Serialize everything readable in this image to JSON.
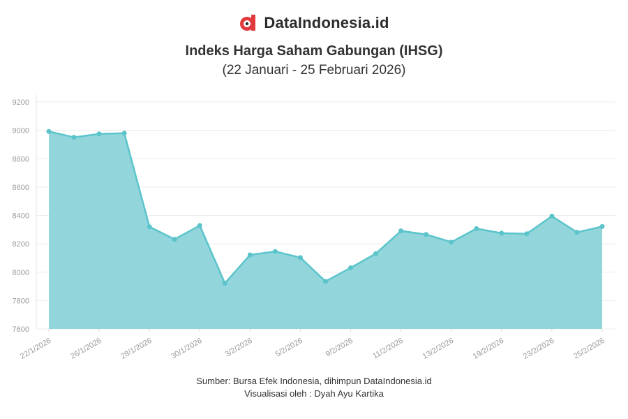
{
  "brand": {
    "name": "DataIndonesia.id",
    "logo_icon": "dataindonesia-logo-icon",
    "logo_color": "#e03a3e"
  },
  "chart_data": {
    "type": "area",
    "title": "Indeks Harga Saham Gabungan (IHSG)",
    "subtitle": "(22 Januari - 25 Februari 2026)",
    "xlabel": "",
    "ylabel": "",
    "x": [
      "22/1/2026",
      "23/1/2026",
      "26/1/2026",
      "27/1/2026",
      "28/1/2026",
      "29/1/2026",
      "30/1/2026",
      "2/2/2026",
      "3/2/2026",
      "4/2/2026",
      "5/2/2026",
      "6/2/2026",
      "9/2/2026",
      "10/2/2026",
      "11/2/2026",
      "12/2/2026",
      "13/2/2026",
      "16/2/2026",
      "19/2/2026",
      "20/2/2026",
      "23/2/2026",
      "24/2/2026",
      "25/2/2026"
    ],
    "x_tick_labels": [
      "22/1/2026",
      "26/1/2026",
      "28/1/2026",
      "30/1/2026",
      "3/2/2026",
      "5/2/2026",
      "9/2/2026",
      "11/2/2026",
      "13/2/2026",
      "19/2/2026",
      "23/2/2026",
      "25/2/2026"
    ],
    "series": [
      {
        "values": [
          8992,
          8951,
          8975,
          8980,
          8320,
          8232,
          8329,
          7922,
          8122,
          8146,
          8103,
          7935,
          8031,
          8131,
          8291,
          8266,
          8212,
          8307,
          8275,
          8271,
          8395,
          8281,
          8322
        ]
      }
    ],
    "ylim": [
      7600,
      9200
    ],
    "y_ticks": [
      7600,
      7800,
      8000,
      8200,
      8400,
      8600,
      8800,
      9000,
      9200
    ],
    "grid": true,
    "legend": "none",
    "colors": {
      "line": "#5bc4cb",
      "fill": "#92d6db",
      "grid": "#ececec",
      "tick_text": "#9a9a9a"
    }
  },
  "footer": {
    "source": "Sumber: Bursa Efek Indonesia, dihimpun DataIndonesia.id",
    "credit": "Visualisasi oleh : Dyah Ayu Kartika"
  }
}
